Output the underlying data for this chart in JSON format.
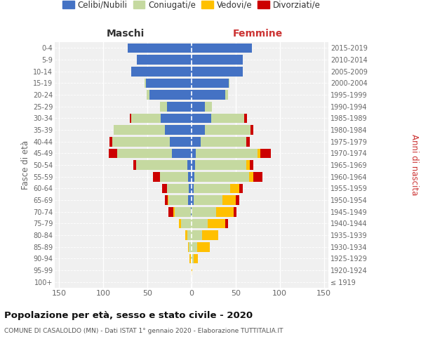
{
  "age_groups": [
    "100+",
    "95-99",
    "90-94",
    "85-89",
    "80-84",
    "75-79",
    "70-74",
    "65-69",
    "60-64",
    "55-59",
    "50-54",
    "45-49",
    "40-44",
    "35-39",
    "30-34",
    "25-29",
    "20-24",
    "15-19",
    "10-14",
    "5-9",
    "0-4"
  ],
  "birth_years": [
    "≤ 1919",
    "1920-1924",
    "1925-1929",
    "1930-1934",
    "1935-1939",
    "1940-1944",
    "1945-1949",
    "1950-1954",
    "1955-1959",
    "1960-1964",
    "1965-1969",
    "1970-1974",
    "1975-1979",
    "1980-1984",
    "1985-1989",
    "1990-1994",
    "1995-1999",
    "2000-2004",
    "2005-2009",
    "2010-2014",
    "2015-2019"
  ],
  "maschi": {
    "celibi": [
      0,
      0,
      0,
      0,
      0,
      0,
      1,
      4,
      3,
      4,
      5,
      22,
      25,
      30,
      35,
      28,
      48,
      52,
      68,
      62,
      72
    ],
    "coniugati": [
      0,
      0,
      1,
      3,
      5,
      12,
      18,
      22,
      25,
      32,
      58,
      62,
      65,
      58,
      33,
      8,
      3,
      1,
      0,
      0,
      0
    ],
    "vedovi": [
      0,
      0,
      1,
      1,
      2,
      2,
      2,
      1,
      0,
      0,
      0,
      0,
      0,
      0,
      0,
      0,
      0,
      0,
      0,
      0,
      0
    ],
    "divorziati": [
      0,
      0,
      0,
      0,
      0,
      0,
      5,
      3,
      5,
      8,
      3,
      10,
      3,
      0,
      2,
      0,
      0,
      0,
      0,
      0,
      0
    ]
  },
  "femmine": {
    "nubili": [
      0,
      0,
      0,
      0,
      0,
      0,
      0,
      2,
      2,
      3,
      4,
      5,
      10,
      15,
      22,
      15,
      38,
      42,
      58,
      58,
      68
    ],
    "coniugate": [
      0,
      0,
      2,
      6,
      12,
      18,
      28,
      33,
      42,
      62,
      58,
      70,
      52,
      52,
      38,
      8,
      3,
      1,
      0,
      0,
      0
    ],
    "vedove": [
      0,
      1,
      5,
      15,
      18,
      20,
      20,
      15,
      10,
      5,
      4,
      3,
      0,
      0,
      0,
      0,
      0,
      0,
      0,
      0,
      0
    ],
    "divorziate": [
      0,
      0,
      0,
      0,
      0,
      3,
      3,
      4,
      4,
      10,
      4,
      12,
      4,
      3,
      3,
      0,
      0,
      0,
      0,
      0,
      0
    ]
  },
  "colors": {
    "celibi": "#4472c4",
    "coniugati": "#c5d9a0",
    "vedovi": "#ffc000",
    "divorziati": "#cc0000"
  },
  "xlim": 155,
  "title": "Popolazione per età, sesso e stato civile - 2020",
  "subtitle": "COMUNE DI CASALOLDO (MN) - Dati ISTAT 1° gennaio 2020 - Elaborazione TUTTITALIA.IT",
  "ylabel_left": "Fasce di età",
  "ylabel_right": "Anni di nascita",
  "xlabel_maschi": "Maschi",
  "xlabel_femmine": "Femmine",
  "bg_color": "#f0f0f0",
  "legend_labels": [
    "Celibi/Nubili",
    "Coniugati/e",
    "Vedovi/e",
    "Divorziati/e"
  ]
}
